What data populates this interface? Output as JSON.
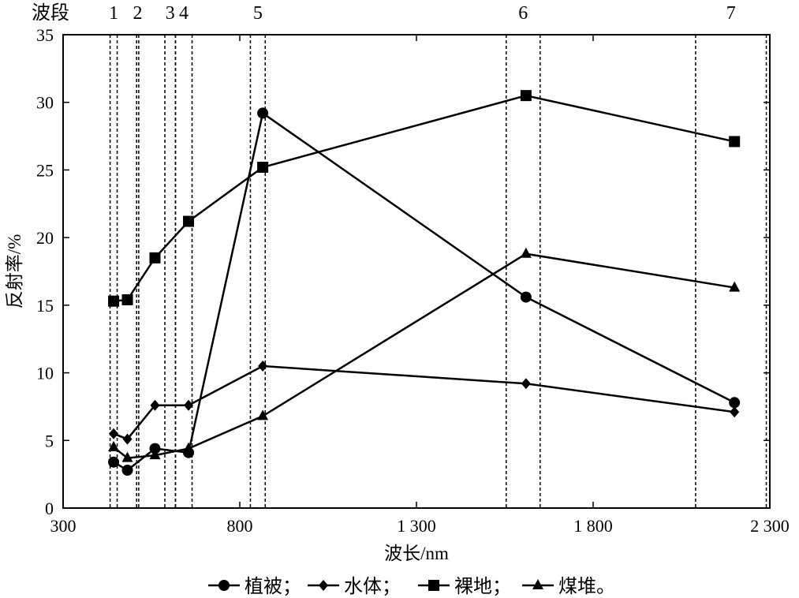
{
  "chart_data": {
    "type": "line",
    "xlabel": "波长/nm",
    "ylabel": "反射率/%",
    "xlim": [
      300,
      2300
    ],
    "ylim": [
      0,
      35
    ],
    "x_ticks": [
      300,
      800,
      1300,
      1800,
      2300
    ],
    "x_tick_labels": [
      "300",
      "800",
      "1 300",
      "1 800",
      "2 300"
    ],
    "y_ticks": [
      0,
      5,
      10,
      15,
      20,
      25,
      30,
      35
    ],
    "y_tick_labels": [
      "0",
      "5",
      "10",
      "15",
      "20",
      "25",
      "30",
      "35"
    ],
    "grid": false,
    "band_title": "波段",
    "bands": [
      {
        "label": "1",
        "range": [
          433,
          453
        ]
      },
      {
        "label": "2",
        "range": [
          508,
          514
        ]
      },
      {
        "label": "3",
        "range": [
          588,
          618
        ]
      },
      {
        "label": "4",
        "range": [
          618,
          665
        ]
      },
      {
        "label": "5",
        "range": [
          830,
          872
        ]
      },
      {
        "label": "6",
        "range": [
          1554,
          1650
        ]
      },
      {
        "label": "7",
        "range": [
          2090,
          2290
        ]
      }
    ],
    "series": [
      {
        "name": "植被",
        "marker": "circle",
        "x": [
          443,
          482,
          560,
          655,
          865,
          1610,
          2200
        ],
        "y": [
          3.4,
          2.8,
          4.4,
          4.1,
          29.2,
          15.6,
          7.8
        ]
      },
      {
        "name": "水体",
        "marker": "diamond",
        "x": [
          443,
          482,
          560,
          655,
          865,
          1610,
          2200
        ],
        "y": [
          5.5,
          5.1,
          7.6,
          7.6,
          10.5,
          9.2,
          7.1
        ]
      },
      {
        "name": "裸地",
        "marker": "square",
        "x": [
          443,
          482,
          560,
          655,
          865,
          1610,
          2200
        ],
        "y": [
          15.3,
          15.4,
          18.5,
          21.2,
          25.2,
          30.5,
          27.1
        ]
      },
      {
        "name": "煤堆",
        "marker": "triangle",
        "x": [
          443,
          482,
          560,
          655,
          865,
          1610,
          2200
        ],
        "y": [
          4.5,
          3.7,
          3.9,
          4.4,
          6.8,
          18.8,
          16.3
        ]
      }
    ],
    "legend": {
      "position": "bottom",
      "entries": [
        {
          "marker": "circle",
          "text": "植被；"
        },
        {
          "marker": "diamond",
          "text": "水体；"
        },
        {
          "marker": "square",
          "text": "裸地；"
        },
        {
          "marker": "triangle",
          "text": "煤堆。"
        }
      ]
    }
  }
}
